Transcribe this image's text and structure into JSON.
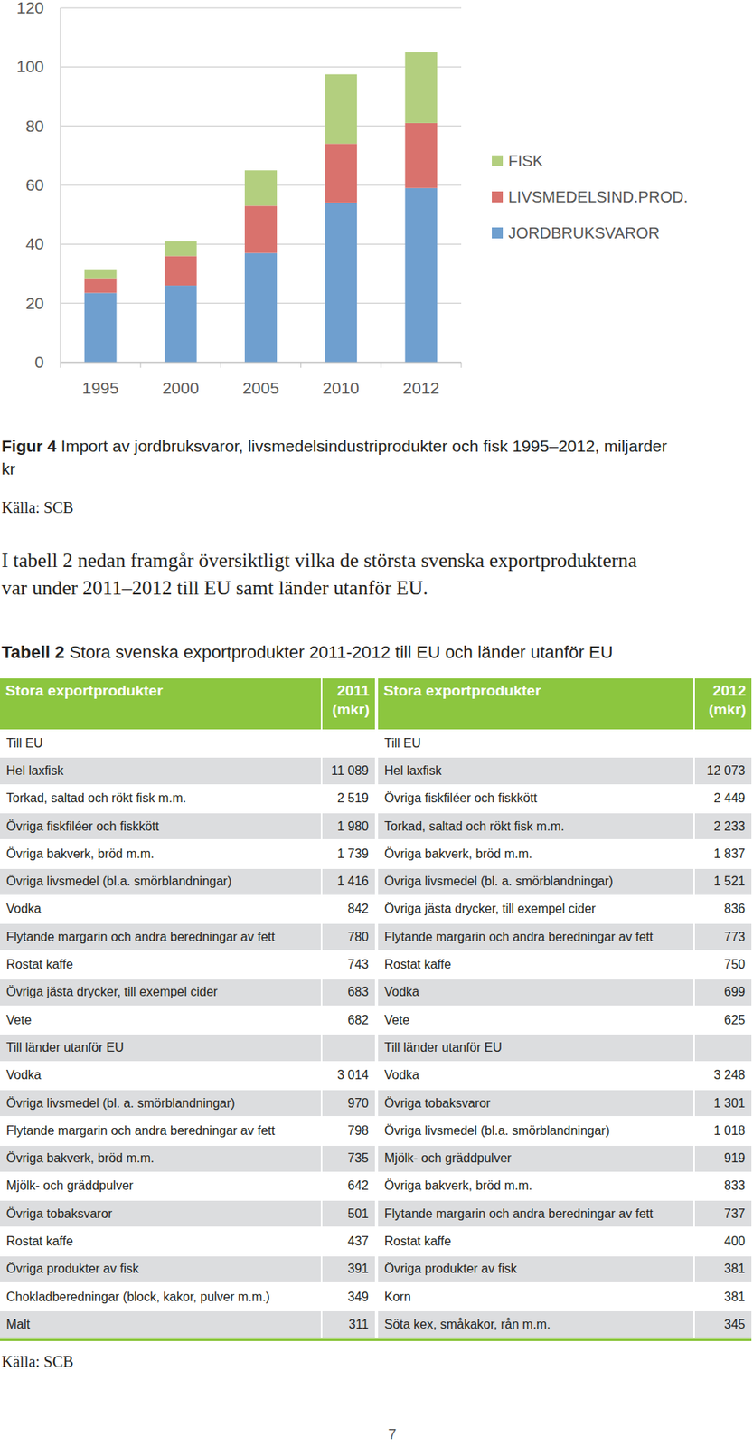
{
  "chart_data": {
    "type": "bar",
    "stacked": true,
    "categories": [
      "1995",
      "2000",
      "2005",
      "2010",
      "2012"
    ],
    "series": [
      {
        "name": "JORDBRUKSVAROR",
        "color": "#6f9fcf",
        "values": [
          23.5,
          26,
          37,
          54,
          59
        ]
      },
      {
        "name": "LIVSMEDELSIND.PROD.",
        "color": "#d9726d",
        "values": [
          5,
          10,
          16,
          20,
          22
        ]
      },
      {
        "name": "FISK",
        "color": "#b3cf7f",
        "values": [
          3,
          5,
          12,
          23.5,
          24
        ]
      }
    ],
    "ylim": [
      0,
      120
    ],
    "yticks": [
      0,
      20,
      40,
      60,
      80,
      100,
      120
    ],
    "grid": true,
    "legend": "right"
  },
  "figure_caption": {
    "label": "Figur 4",
    "text": "Import av jordbruksvaror, livsmedelsindustriprodukter och fisk 1995–2012, miljarder kr"
  },
  "figure_source": "Källa: SCB",
  "paragraph": [
    "I tabell 2 nedan framgår översiktligt vilka de största svenska exportprodukterna",
    "var under 2011–2012 till EU samt länder utanför EU."
  ],
  "table_title": {
    "label": "Tabell 2",
    "text": "Stora svenska exportprodukter 2011-2012 till EU och länder utanför EU"
  },
  "table": {
    "header": [
      "Stora exportprodukter",
      "2011 (mkr)",
      "Stora exportprodukter",
      "2012 (mkr)"
    ],
    "rows": [
      [
        "Till EU",
        null,
        "Till EU",
        null
      ],
      [
        "Hel laxfisk",
        "11 089",
        "Hel laxfisk",
        "12 073"
      ],
      [
        "Torkad, saltad och rökt fisk m.m.",
        "2 519",
        "Övriga fiskfiléer och fiskkött",
        "2 449"
      ],
      [
        "Övriga fiskfiléer och fiskkött",
        "1 980",
        "Torkad, saltad och rökt fisk m.m.",
        "2 233"
      ],
      [
        "Övriga bakverk, bröd m.m.",
        "1 739",
        "Övriga bakverk, bröd m.m.",
        "1 837"
      ],
      [
        "Övriga livsmedel (bl.a. smörblandningar)",
        "1 416",
        "Övriga livsmedel (bl. a. smörblandningar)",
        "1 521"
      ],
      [
        "Vodka",
        "842",
        "Övriga jästa drycker, till exempel cider",
        "836"
      ],
      [
        "Flytande margarin och andra beredningar av fett",
        "780",
        "Flytande margarin och andra beredningar av fett",
        "773"
      ],
      [
        "Rostat kaffe",
        "743",
        "Rostat kaffe",
        "750"
      ],
      [
        "Övriga jästa drycker, till exempel cider",
        "683",
        "Vodka",
        "699"
      ],
      [
        "Vete",
        "682",
        "Vete",
        "625"
      ],
      [
        "Till länder utanför EU",
        null,
        "Till länder utanför EU",
        null
      ],
      [
        "Vodka",
        "3 014",
        "Vodka",
        "3 248"
      ],
      [
        "Övriga livsmedel (bl. a. smörblandningar)",
        "970",
        "Övriga tobaksvaror",
        "1 301"
      ],
      [
        "Flytande margarin och andra beredningar av fett",
        "798",
        "Övriga livsmedel (bl.a. smörblandningar)",
        "1 018"
      ],
      [
        "Övriga bakverk, bröd m.m.",
        "735",
        "Mjölk- och gräddpulver",
        "919"
      ],
      [
        "Mjölk- och gräddpulver",
        "642",
        "Övriga bakverk, bröd m.m.",
        "833"
      ],
      [
        "Övriga tobaksvaror",
        "501",
        "Flytande margarin och andra beredningar av fett",
        "737"
      ],
      [
        "Rostat kaffe",
        "437",
        "Rostat kaffe",
        "400"
      ],
      [
        "Övriga produkter av fisk",
        "391",
        "Övriga produkter av fisk",
        "381"
      ],
      [
        "Chokladberedningar (block, kakor, pulver m.m.)",
        "349",
        "Korn",
        "381"
      ],
      [
        "Malt",
        "311",
        "Söta kex, småkakor, rån m.m.",
        "345"
      ]
    ]
  },
  "table_source": "Källa: SCB",
  "page_number": "7"
}
